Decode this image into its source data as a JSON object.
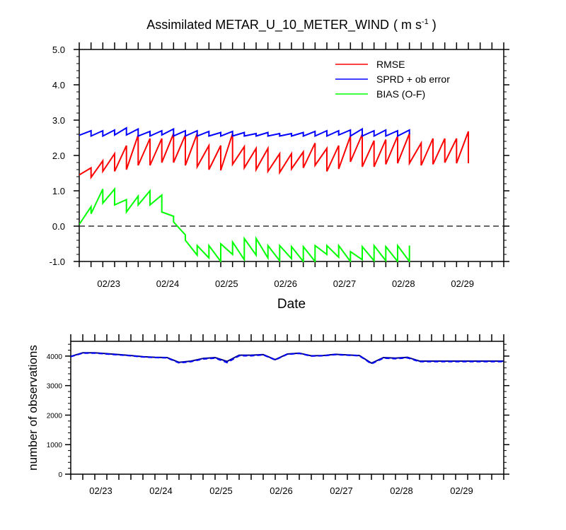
{
  "chart_data": [
    {
      "type": "line",
      "title": "Assimilated METAR_U_10_METER_WIND",
      "title_units": "( m s-1 )",
      "title_units_main": "( m s",
      "title_units_sup": "-1",
      "title_units_end": " )",
      "xlabel": "Date",
      "ylabel": "",
      "x_ticklabels": [
        "02/23",
        "02/24",
        "02/25",
        "02/26",
        "02/27",
        "02/28",
        "02/29"
      ],
      "x_tick_positions": [
        0.5,
        1.5,
        2.5,
        3.5,
        4.5,
        5.5,
        6.5
      ],
      "xlim": [
        0.0,
        7.2
      ],
      "ylim": [
        -1.0,
        5.0
      ],
      "y_ticks": [
        -1.0,
        0.0,
        1.0,
        2.0,
        3.0,
        4.0,
        5.0
      ],
      "y_ticklabels": [
        "-1.0",
        "0.0",
        "1.0",
        "2.0",
        "3.0",
        "4.0",
        "5.0"
      ],
      "grid": false,
      "legend_position": "top-right",
      "reference_line": {
        "y": 0.0,
        "style": "dashed",
        "color": "#333333"
      },
      "series": [
        {
          "name": "RMSE",
          "color": "#ff0000",
          "points": [
            [
              0.0,
              1.45
            ],
            [
              0.2,
              1.65
            ],
            [
              0.2,
              1.38
            ],
            [
              0.4,
              1.85
            ],
            [
              0.4,
              1.55
            ],
            [
              0.6,
              2.05
            ],
            [
              0.6,
              1.55
            ],
            [
              0.8,
              2.28
            ],
            [
              0.8,
              1.6
            ],
            [
              1.0,
              2.58
            ],
            [
              1.0,
              1.72
            ],
            [
              1.2,
              2.48
            ],
            [
              1.2,
              1.72
            ],
            [
              1.4,
              2.48
            ],
            [
              1.4,
              1.8
            ],
            [
              1.6,
              2.62
            ],
            [
              1.6,
              1.8
            ],
            [
              1.8,
              2.58
            ],
            [
              1.8,
              1.72
            ],
            [
              2.0,
              2.62
            ],
            [
              2.0,
              1.68
            ],
            [
              2.2,
              2.28
            ],
            [
              2.2,
              1.6
            ],
            [
              2.4,
              2.28
            ],
            [
              2.4,
              1.58
            ],
            [
              2.6,
              2.62
            ],
            [
              2.6,
              1.75
            ],
            [
              2.8,
              2.25
            ],
            [
              2.8,
              1.65
            ],
            [
              3.0,
              2.2
            ],
            [
              3.0,
              1.6
            ],
            [
              3.2,
              2.2
            ],
            [
              3.2,
              1.55
            ],
            [
              3.4,
              2.05
            ],
            [
              3.4,
              1.52
            ],
            [
              3.6,
              2.05
            ],
            [
              3.6,
              1.62
            ],
            [
              3.8,
              2.1
            ],
            [
              3.8,
              1.65
            ],
            [
              4.0,
              2.35
            ],
            [
              4.0,
              1.72
            ],
            [
              4.2,
              2.2
            ],
            [
              4.2,
              1.55
            ],
            [
              4.4,
              2.28
            ],
            [
              4.4,
              1.62
            ],
            [
              4.6,
              2.55
            ],
            [
              4.6,
              1.82
            ],
            [
              4.8,
              2.6
            ],
            [
              4.8,
              1.68
            ],
            [
              5.0,
              2.42
            ],
            [
              5.0,
              1.68
            ],
            [
              5.2,
              2.45
            ],
            [
              5.2,
              1.75
            ],
            [
              5.4,
              2.55
            ],
            [
              5.4,
              1.78
            ],
            [
              5.6,
              2.62
            ],
            [
              5.6,
              1.78
            ],
            [
              5.8,
              2.35
            ],
            [
              5.8,
              1.72
            ],
            [
              6.0,
              2.48
            ],
            [
              6.0,
              1.75
            ],
            [
              6.2,
              2.48
            ],
            [
              6.2,
              1.8
            ],
            [
              6.4,
              2.48
            ],
            [
              6.4,
              1.78
            ],
            [
              6.6,
              2.68
            ],
            [
              6.6,
              1.78
            ]
          ]
        },
        {
          "name": "SPRD + ob error",
          "color": "#0000ff",
          "points": [
            [
              0.0,
              2.57
            ],
            [
              0.2,
              2.7
            ],
            [
              0.2,
              2.55
            ],
            [
              0.4,
              2.7
            ],
            [
              0.4,
              2.55
            ],
            [
              0.6,
              2.72
            ],
            [
              0.6,
              2.58
            ],
            [
              0.8,
              2.78
            ],
            [
              0.8,
              2.58
            ],
            [
              1.0,
              2.75
            ],
            [
              1.0,
              2.55
            ],
            [
              1.2,
              2.68
            ],
            [
              1.2,
              2.55
            ],
            [
              1.4,
              2.7
            ],
            [
              1.4,
              2.58
            ],
            [
              1.6,
              2.75
            ],
            [
              1.6,
              2.55
            ],
            [
              1.8,
              2.7
            ],
            [
              1.8,
              2.55
            ],
            [
              2.0,
              2.7
            ],
            [
              2.0,
              2.55
            ],
            [
              2.2,
              2.68
            ],
            [
              2.2,
              2.55
            ],
            [
              2.4,
              2.65
            ],
            [
              2.4,
              2.55
            ],
            [
              2.6,
              2.68
            ],
            [
              2.6,
              2.55
            ],
            [
              2.8,
              2.65
            ],
            [
              2.8,
              2.55
            ],
            [
              3.0,
              2.62
            ],
            [
              3.0,
              2.55
            ],
            [
              3.2,
              2.65
            ],
            [
              3.2,
              2.55
            ],
            [
              3.4,
              2.62
            ],
            [
              3.4,
              2.55
            ],
            [
              3.6,
              2.62
            ],
            [
              3.6,
              2.55
            ],
            [
              3.8,
              2.65
            ],
            [
              3.8,
              2.55
            ],
            [
              4.0,
              2.68
            ],
            [
              4.0,
              2.55
            ],
            [
              4.2,
              2.7
            ],
            [
              4.2,
              2.55
            ],
            [
              4.4,
              2.7
            ],
            [
              4.4,
              2.58
            ],
            [
              4.6,
              2.72
            ],
            [
              4.6,
              2.55
            ],
            [
              4.8,
              2.75
            ],
            [
              4.8,
              2.55
            ],
            [
              5.0,
              2.7
            ],
            [
              5.0,
              2.55
            ],
            [
              5.2,
              2.72
            ],
            [
              5.2,
              2.55
            ],
            [
              5.4,
              2.7
            ],
            [
              5.4,
              2.55
            ],
            [
              5.6,
              2.72
            ],
            [
              5.6,
              2.6
            ]
          ]
        },
        {
          "name": "BIAS (O-F)",
          "color": "#00ff00",
          "points": [
            [
              0.0,
              0.05
            ],
            [
              0.2,
              0.55
            ],
            [
              0.2,
              0.35
            ],
            [
              0.4,
              1.05
            ],
            [
              0.4,
              0.65
            ],
            [
              0.6,
              1.05
            ],
            [
              0.6,
              0.6
            ],
            [
              0.8,
              0.75
            ],
            [
              0.8,
              0.4
            ],
            [
              1.0,
              0.85
            ],
            [
              1.0,
              0.6
            ],
            [
              1.2,
              1.0
            ],
            [
              1.2,
              0.6
            ],
            [
              1.4,
              0.88
            ],
            [
              1.4,
              0.4
            ],
            [
              1.6,
              0.28
            ],
            [
              1.6,
              0.12
            ],
            [
              1.8,
              -0.25
            ],
            [
              1.8,
              -0.4
            ],
            [
              2.0,
              -0.82
            ],
            [
              2.0,
              -0.55
            ],
            [
              2.2,
              -0.9
            ],
            [
              2.2,
              -0.55
            ],
            [
              2.4,
              -1.0
            ],
            [
              2.4,
              -0.5
            ],
            [
              2.6,
              -0.8
            ],
            [
              2.6,
              -0.45
            ],
            [
              2.8,
              -0.95
            ],
            [
              2.8,
              -0.35
            ],
            [
              3.0,
              -0.82
            ],
            [
              3.0,
              -0.35
            ],
            [
              3.2,
              -0.9
            ],
            [
              3.2,
              -0.55
            ],
            [
              3.4,
              -0.98
            ],
            [
              3.4,
              -0.55
            ],
            [
              3.6,
              -0.92
            ],
            [
              3.6,
              -0.58
            ],
            [
              3.8,
              -1.0
            ],
            [
              3.8,
              -0.58
            ],
            [
              4.0,
              -1.0
            ],
            [
              4.0,
              -0.55
            ],
            [
              4.2,
              -0.8
            ],
            [
              4.2,
              -0.55
            ],
            [
              4.4,
              -0.88
            ],
            [
              4.4,
              -0.55
            ],
            [
              4.6,
              -1.0
            ],
            [
              4.6,
              -0.72
            ],
            [
              4.8,
              -0.95
            ],
            [
              4.8,
              -0.58
            ],
            [
              5.0,
              -0.98
            ],
            [
              5.0,
              -0.55
            ],
            [
              5.2,
              -0.98
            ],
            [
              5.2,
              -0.58
            ],
            [
              5.4,
              -1.0
            ],
            [
              5.4,
              -0.55
            ],
            [
              5.6,
              -1.0
            ],
            [
              5.6,
              -0.55
            ]
          ]
        }
      ]
    },
    {
      "type": "line",
      "title": "",
      "xlabel": "",
      "ylabel": "number of observations",
      "x_ticklabels": [
        "02/23",
        "02/24",
        "02/25",
        "02/26",
        "02/27",
        "02/28",
        "02/29"
      ],
      "x_tick_positions": [
        0.5,
        1.5,
        2.5,
        3.5,
        4.5,
        5.5,
        6.5
      ],
      "xlim": [
        0.0,
        7.2
      ],
      "ylim": [
        0,
        4500
      ],
      "y_ticks": [
        0,
        1000,
        2000,
        3000,
        4000
      ],
      "y_ticklabels": [
        "0",
        "1000",
        "2000",
        "3000",
        "4000"
      ],
      "grid": false,
      "series": [
        {
          "style": "solid",
          "color": "#00008b",
          "x": [
            0.0,
            0.2,
            0.4,
            0.6,
            0.8,
            1.0,
            1.2,
            1.4,
            1.6,
            1.8,
            2.0,
            2.2,
            2.4,
            2.6,
            2.8,
            3.0,
            3.2,
            3.4,
            3.6,
            3.8,
            4.0,
            4.2,
            4.4,
            4.6,
            4.8,
            5.0,
            5.2,
            5.4,
            5.6,
            5.8,
            6.0,
            6.2,
            6.4,
            6.6,
            6.8,
            7.0,
            7.2
          ],
          "values": [
            3990,
            4110,
            4110,
            4080,
            4050,
            4020,
            3980,
            3960,
            3950,
            3790,
            3830,
            3920,
            3950,
            3820,
            4030,
            4030,
            4050,
            3880,
            4070,
            4100,
            4010,
            4020,
            4060,
            4040,
            4020,
            3760,
            3950,
            3930,
            3960,
            3830,
            3830,
            3830,
            3830,
            3830,
            3830,
            3830,
            3830
          ]
        },
        {
          "style": "dashed",
          "color": "#0000ff",
          "x": [
            0.0,
            0.2,
            0.4,
            0.6,
            0.8,
            1.0,
            1.2,
            1.4,
            1.6,
            1.8,
            2.0,
            2.2,
            2.4,
            2.6,
            2.8,
            3.0,
            3.2,
            3.4,
            3.6,
            3.8,
            4.0,
            4.2,
            4.4,
            4.6,
            4.8,
            5.0,
            5.2,
            5.4,
            5.6,
            5.8,
            6.0,
            6.2,
            6.4,
            6.6,
            6.8,
            7.0,
            7.2
          ],
          "values": [
            3980,
            4100,
            4100,
            4070,
            4040,
            4010,
            3970,
            3950,
            3940,
            3770,
            3810,
            3900,
            3930,
            3780,
            4010,
            4010,
            4040,
            3870,
            4060,
            4090,
            4000,
            4010,
            4050,
            4030,
            4010,
            3740,
            3930,
            3910,
            3940,
            3810,
            3810,
            3810,
            3810,
            3810,
            3810,
            3810,
            3810
          ]
        }
      ]
    }
  ]
}
